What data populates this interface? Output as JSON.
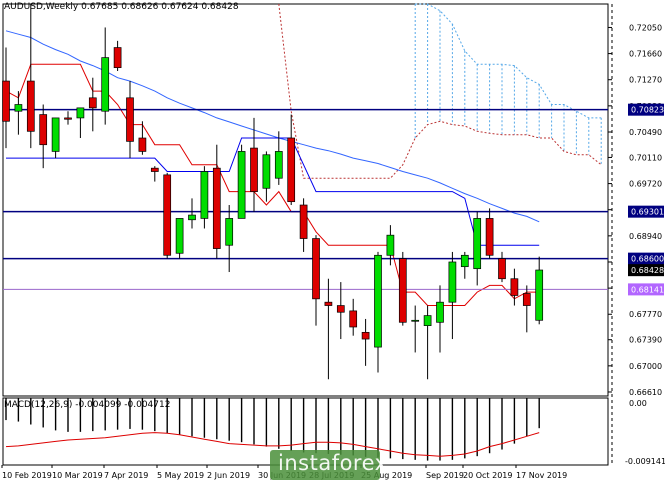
{
  "header": {
    "symbol_line": "AUDUSD,Weekly  0.67685 0.68626 0.67624 0.68428"
  },
  "macd": {
    "label": "MACD(12,26,9) -0.004099 -0.004712",
    "axis_top": "0.00",
    "axis_bottom": "-0.009141"
  },
  "watermark": "instaforex",
  "colors": {
    "bull": "#00dd00",
    "bear": "#dd0000",
    "wick": "#000000",
    "tenkan": "#e00000",
    "kijun": "#0000ee",
    "ma": "#3366ff",
    "cloud": "#55a8e8",
    "span_b": "#bb3333",
    "level_dark": "#000080",
    "level_purple": "#9966cc",
    "tag_dark": "#000080",
    "tag_purple": "#b266ff",
    "tag_price": "#000000"
  },
  "chart_data": {
    "type": "candlestick",
    "price_range": [
      0.6655,
      0.724
    ],
    "y_ticks": [
      "0.72050",
      "0.71660",
      "0.71270",
      "0.70880",
      "0.70490",
      "0.70110",
      "0.69720",
      "0.69330",
      "0.68940",
      "0.68550",
      "0.68160",
      "0.67770",
      "0.67390",
      "0.67000",
      "0.66610"
    ],
    "x_labels": [
      "10 Feb 2019",
      "10 Mar 2019",
      "7 Apr 2019",
      "5 May 2019",
      "2 Jun 2019",
      "30 Jun 2019",
      "28 Jul 2019",
      "25 Aug 2019",
      "Sep 2019",
      "20 Oct 2019",
      "17 Nov 2019"
    ],
    "candles": [
      {
        "o": 0.7125,
        "h": 0.7175,
        "l": 0.7025,
        "c": 0.7065
      },
      {
        "o": 0.708,
        "h": 0.711,
        "l": 0.7045,
        "c": 0.709
      },
      {
        "o": 0.7125,
        "h": 0.724,
        "l": 0.7025,
        "c": 0.705
      },
      {
        "o": 0.7075,
        "h": 0.709,
        "l": 0.6995,
        "c": 0.703
      },
      {
        "o": 0.702,
        "h": 0.707,
        "l": 0.701,
        "c": 0.707
      },
      {
        "o": 0.707,
        "h": 0.708,
        "l": 0.706,
        "c": 0.7068
      },
      {
        "o": 0.707,
        "h": 0.7085,
        "l": 0.704,
        "c": 0.7085
      },
      {
        "o": 0.71,
        "h": 0.713,
        "l": 0.705,
        "c": 0.7085
      },
      {
        "o": 0.708,
        "h": 0.7205,
        "l": 0.706,
        "c": 0.716
      },
      {
        "o": 0.7175,
        "h": 0.7185,
        "l": 0.714,
        "c": 0.7145
      },
      {
        "o": 0.71,
        "h": 0.7125,
        "l": 0.701,
        "c": 0.7035
      },
      {
        "o": 0.704,
        "h": 0.7065,
        "l": 0.7015,
        "c": 0.702
      },
      {
        "o": 0.6995,
        "h": 0.6998,
        "l": 0.6975,
        "c": 0.699
      },
      {
        "o": 0.6985,
        "h": 0.6988,
        "l": 0.686,
        "c": 0.6865
      },
      {
        "o": 0.6868,
        "h": 0.692,
        "l": 0.686,
        "c": 0.692
      },
      {
        "o": 0.6918,
        "h": 0.695,
        "l": 0.6905,
        "c": 0.6925
      },
      {
        "o": 0.692,
        "h": 0.6998,
        "l": 0.6905,
        "c": 0.699
      },
      {
        "o": 0.6995,
        "h": 0.703,
        "l": 0.686,
        "c": 0.6875
      },
      {
        "o": 0.688,
        "h": 0.694,
        "l": 0.684,
        "c": 0.692
      },
      {
        "o": 0.692,
        "h": 0.703,
        "l": 0.692,
        "c": 0.702
      },
      {
        "o": 0.7025,
        "h": 0.707,
        "l": 0.693,
        "c": 0.696
      },
      {
        "o": 0.6965,
        "h": 0.702,
        "l": 0.6945,
        "c": 0.7015
      },
      {
        "o": 0.698,
        "h": 0.705,
        "l": 0.697,
        "c": 0.702
      },
      {
        "o": 0.704,
        "h": 0.7075,
        "l": 0.694,
        "c": 0.6945
      },
      {
        "o": 0.694,
        "h": 0.695,
        "l": 0.687,
        "c": 0.689
      },
      {
        "o": 0.689,
        "h": 0.6895,
        "l": 0.676,
        "c": 0.68
      },
      {
        "o": 0.6795,
        "h": 0.683,
        "l": 0.668,
        "c": 0.679
      },
      {
        "o": 0.679,
        "h": 0.6825,
        "l": 0.674,
        "c": 0.678
      },
      {
        "o": 0.6782,
        "h": 0.68,
        "l": 0.6745,
        "c": 0.6758
      },
      {
        "o": 0.675,
        "h": 0.677,
        "l": 0.67,
        "c": 0.674
      },
      {
        "o": 0.6728,
        "h": 0.687,
        "l": 0.669,
        "c": 0.6865
      },
      {
        "o": 0.6865,
        "h": 0.691,
        "l": 0.685,
        "c": 0.6895
      },
      {
        "o": 0.686,
        "h": 0.687,
        "l": 0.676,
        "c": 0.6765
      },
      {
        "o": 0.6768,
        "h": 0.679,
        "l": 0.672,
        "c": 0.6768
      },
      {
        "o": 0.676,
        "h": 0.679,
        "l": 0.668,
        "c": 0.6775
      },
      {
        "o": 0.6765,
        "h": 0.682,
        "l": 0.672,
        "c": 0.6795
      },
      {
        "o": 0.6795,
        "h": 0.687,
        "l": 0.674,
        "c": 0.6855
      },
      {
        "o": 0.6848,
        "h": 0.687,
        "l": 0.683,
        "c": 0.6865
      },
      {
        "o": 0.6845,
        "h": 0.693,
        "l": 0.682,
        "c": 0.692
      },
      {
        "o": 0.692,
        "h": 0.6935,
        "l": 0.686,
        "c": 0.6865
      },
      {
        "o": 0.686,
        "h": 0.687,
        "l": 0.6825,
        "c": 0.683
      },
      {
        "o": 0.683,
        "h": 0.6845,
        "l": 0.679,
        "c": 0.6805
      },
      {
        "o": 0.6808,
        "h": 0.682,
        "l": 0.675,
        "c": 0.679
      },
      {
        "o": 0.6768,
        "h": 0.6863,
        "l": 0.6762,
        "c": 0.6843
      }
    ],
    "tenkan": [
      0.711,
      0.71,
      0.715,
      0.715,
      0.715,
      0.715,
      0.715,
      0.711,
      0.711,
      0.709,
      0.706,
      0.706,
      0.703,
      0.703,
      0.703,
      0.7,
      0.7,
      0.7,
      0.696,
      0.696,
      0.696,
      0.694,
      0.696,
      0.693,
      0.693,
      0.69,
      0.688,
      0.688,
      0.688,
      0.688,
      0.688,
      0.688,
      0.681,
      0.681,
      0.679,
      0.679,
      0.679,
      0.679,
      0.681,
      0.682,
      0.682,
      0.68,
      0.681,
      0.681
    ],
    "kijun": [
      0.701,
      0.701,
      0.701,
      0.701,
      0.701,
      0.701,
      0.701,
      0.701,
      0.701,
      0.701,
      0.701,
      0.701,
      0.701,
      0.699,
      0.699,
      0.699,
      0.699,
      0.699,
      0.699,
      0.704,
      0.704,
      0.704,
      0.704,
      0.704,
      0.7,
      0.696,
      0.696,
      0.696,
      0.696,
      0.696,
      0.696,
      0.696,
      0.696,
      0.696,
      0.696,
      0.696,
      0.696,
      0.695,
      0.688,
      0.688,
      0.688,
      0.688,
      0.688,
      0.688
    ],
    "ma": [
      0.72,
      0.7195,
      0.719,
      0.718,
      0.7172,
      0.7165,
      0.7155,
      0.7148,
      0.714,
      0.713,
      0.7125,
      0.7118,
      0.711,
      0.71,
      0.7092,
      0.7085,
      0.7078,
      0.707,
      0.7064,
      0.7058,
      0.7052,
      0.7046,
      0.704,
      0.7035,
      0.703,
      0.7025,
      0.7021,
      0.7016,
      0.701,
      0.7006,
      0.7002,
      0.6996,
      0.699,
      0.6985,
      0.698,
      0.6973,
      0.6965,
      0.6957,
      0.695,
      0.6942,
      0.6935,
      0.6928,
      0.6923,
      0.6915
    ],
    "span_a": [
      null,
      null,
      null,
      null,
      null,
      null,
      null,
      null,
      null,
      null,
      null,
      null,
      null,
      null,
      null,
      null,
      null,
      null,
      null,
      null,
      null,
      null,
      null,
      null,
      null,
      null,
      null,
      null,
      null,
      null,
      null,
      null,
      null,
      0.724,
      0.724,
      0.723,
      0.721,
      0.717,
      0.715,
      0.715,
      0.715,
      0.7148,
      0.713,
      0.712,
      0.709,
      0.709,
      0.708,
      0.707,
      0.707,
      0.706,
      0.707,
      0.7075,
      0.706,
      0.7045
    ],
    "span_b": [
      null,
      null,
      null,
      null,
      null,
      null,
      null,
      null,
      null,
      null,
      null,
      null,
      null,
      null,
      null,
      null,
      null,
      null,
      null,
      null,
      null,
      null,
      0.724,
      0.708,
      0.698,
      0.698,
      0.698,
      0.698,
      0.698,
      0.698,
      0.698,
      0.698,
      0.7,
      0.704,
      0.706,
      0.7065,
      0.706,
      0.7058,
      0.705,
      0.7047,
      0.7045,
      0.7045,
      0.7045,
      0.704,
      0.704,
      0.702,
      0.7015,
      0.7015,
      0.7,
      0.699,
      0.697,
      0.699,
      0.701,
      0.7005
    ],
    "levels": [
      {
        "value": 0.70823,
        "label": "0.70823",
        "style": "dark"
      },
      {
        "value": 0.69301,
        "label": "0.69301",
        "style": "dark"
      },
      {
        "value": 0.686,
        "label": "0.68600",
        "style": "dark"
      },
      {
        "value": 0.68141,
        "label": "0.68141",
        "style": "purple"
      }
    ],
    "current_price": {
      "value": 0.68428,
      "label": "0.68428"
    },
    "macd_hist": [
      -0.003,
      -0.0032,
      -0.0036,
      -0.004,
      -0.0044,
      -0.0046,
      -0.0046,
      -0.0045,
      -0.0044,
      -0.0043,
      -0.0042,
      -0.0043,
      -0.0045,
      -0.0048,
      -0.005,
      -0.0052,
      -0.0054,
      -0.0056,
      -0.0058,
      -0.006,
      -0.0063,
      -0.0066,
      -0.0069,
      -0.0072,
      -0.0074,
      -0.0075,
      -0.0076,
      -0.0077,
      -0.0078,
      -0.008,
      -0.0081,
      -0.0082,
      -0.0083,
      -0.0084,
      -0.0085,
      -0.0085,
      -0.0084,
      -0.0082,
      -0.0079,
      -0.0075,
      -0.007,
      -0.0062,
      -0.0052,
      -0.0041
    ],
    "macd_signal": [
      -0.0066,
      -0.0065,
      -0.0063,
      -0.0061,
      -0.0059,
      -0.0057,
      -0.0056,
      -0.0055,
      -0.0054,
      -0.0052,
      -0.005,
      -0.0048,
      -0.0047,
      -0.0048,
      -0.005,
      -0.0053,
      -0.0056,
      -0.0059,
      -0.0062,
      -0.0063,
      -0.0064,
      -0.0065,
      -0.0065,
      -0.0064,
      -0.0062,
      -0.006,
      -0.006,
      -0.0061,
      -0.0063,
      -0.0066,
      -0.0069,
      -0.0072,
      -0.0075,
      -0.0077,
      -0.0078,
      -0.0079,
      -0.0078,
      -0.0076,
      -0.0072,
      -0.0066,
      -0.0062,
      -0.0057,
      -0.0052,
      -0.0047
    ],
    "macd_range": [
      -0.0091,
      0.0
    ]
  }
}
